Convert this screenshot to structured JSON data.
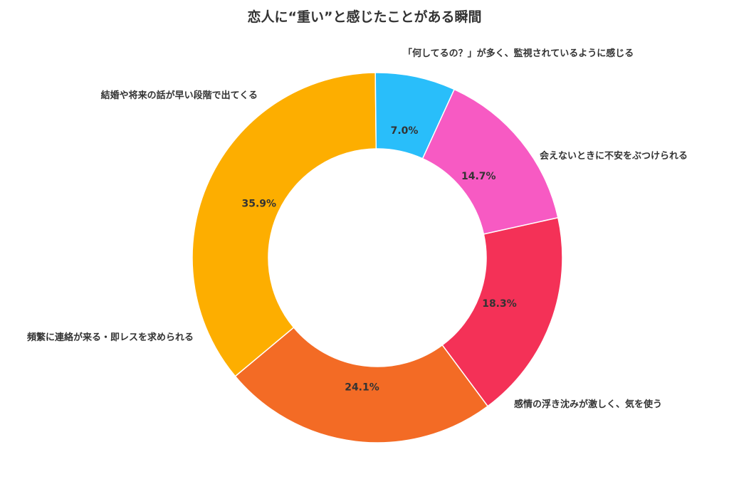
{
  "chart_data": {
    "type": "pie",
    "variant": "donut",
    "title": "恋人に“重い”と感じたことがある瞬間",
    "slices": [
      {
        "label": "会えないときに不安をぶつけられる",
        "value": 18.3,
        "value_label": "18.3%",
        "color": "#F43157"
      },
      {
        "label": "感情の浮き沈みが激しく、気を使う",
        "value": 24.1,
        "value_label": "24.1%",
        "color": "#F36B25"
      },
      {
        "label": "頻繁に連絡が来る・即レスを求められる",
        "value": 35.9,
        "value_label": "35.9%",
        "color": "#FDAE00"
      },
      {
        "label": "結婚や将来の話が早い段階で出てくる",
        "value": 7.0,
        "value_label": "7.0%",
        "color": "#29BEFA"
      },
      {
        "label": "「何してるの？」が多く、監視されているように感じる",
        "value": 14.7,
        "value_label": "14.7%",
        "color": "#F75AC3"
      }
    ]
  }
}
